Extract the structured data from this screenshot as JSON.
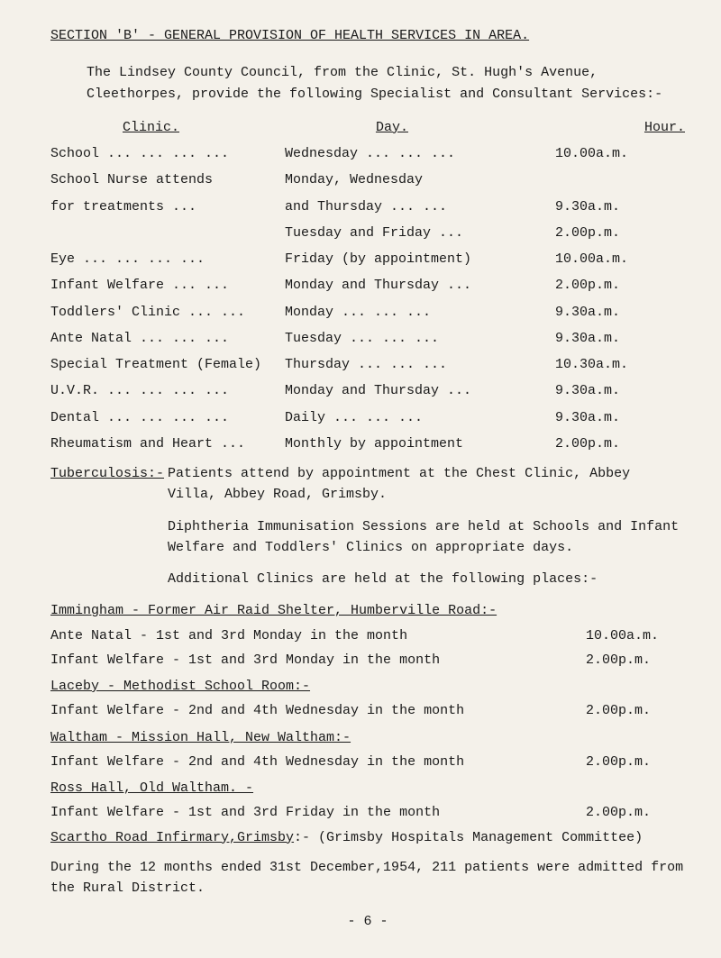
{
  "title": "SECTION 'B' - GENERAL PROVISION OF HEALTH SERVICES IN AREA.",
  "intro": "The Lindsey County Council, from the Clinic, St. Hugh's Avenue, Cleethorpes, provide the following Specialist and Consultant Services:-",
  "headers": {
    "clinic": "Clinic.",
    "day": "Day.",
    "hour": "Hour."
  },
  "schedule": [
    {
      "clinic": "School  ... ... ... ...",
      "day": "Wednesday    ... ... ...",
      "hour": "10.00a.m."
    },
    {
      "clinic": "School Nurse attends",
      "clinic2": "    for treatments    ...",
      "day": "Monday, Wednesday",
      "day2": "and Thursday      ... ...",
      "hour2": "9.30a.m."
    },
    {
      "clinic": "",
      "day": "Tuesday and Friday     ...",
      "hour": "2.00p.m."
    },
    {
      "clinic": "Eye     ... ... ... ...",
      "day": "Friday (by appointment)",
      "hour": "10.00a.m."
    },
    {
      "clinic": "Infant Welfare    ... ...",
      "day": "Monday and Thursday   ...",
      "hour": "2.00p.m."
    },
    {
      "clinic": "Toddlers' Clinic  ... ...",
      "day": "Monday       ... ... ...",
      "hour": "9.30a.m."
    },
    {
      "clinic": "Ante Natal    ... ... ...",
      "day": "Tuesday      ... ... ...",
      "hour": "9.30a.m."
    },
    {
      "clinic": "Special Treatment (Female)",
      "day": "Thursday     ... ... ...",
      "hour": "10.30a.m."
    },
    {
      "clinic": "U.V.R.  ... ... ... ...",
      "day": "Monday and Thursday   ...",
      "hour": "9.30a.m."
    },
    {
      "clinic": "Dental  ... ... ... ...",
      "day": "Daily        ... ... ...",
      "hour": "9.30a.m."
    },
    {
      "clinic": "Rheumatism and Heart   ...",
      "day": "Monthly by appointment",
      "hour": "2.00p.m."
    }
  ],
  "tb": {
    "label": "Tuberculosis:-",
    "p1": "Patients attend by appointment at the Chest Clinic, Abbey Villa, Abbey Road, Grimsby.",
    "p2": "Diphtheria Immunisation Sessions are held at Schools and Infant Welfare and Toddlers' Clinics on appropriate days.",
    "p3": "Additional Clinics are held at the following places:-"
  },
  "places": [
    {
      "heading": "Immingham - Former Air Raid Shelter, Humberville Road:-"
    },
    {
      "left": "Ante Natal      - 1st and 3rd Monday in the month",
      "right": "10.00a.m."
    },
    {
      "left": "Infant Welfare - 1st and 3rd Monday in the month",
      "right": "2.00p.m."
    },
    {
      "heading": "Laceby - Methodist School Room:-"
    },
    {
      "left": "Infant Welfare - 2nd and 4th Wednesday in the month",
      "right": "2.00p.m."
    },
    {
      "heading": "Waltham - Mission Hall, New Waltham:-"
    },
    {
      "left": "Infant Welfare - 2nd and 4th Wednesday in the month",
      "right": "2.00p.m."
    },
    {
      "heading": "Ross Hall, Old Waltham. -"
    },
    {
      "left": "Infant Welfare - 1st and 3rd Friday in the month",
      "right": "2.00p.m."
    }
  ],
  "scartho": {
    "lead_u": "Scartho Road Infirmary,Grimsby",
    "tail": ":- (Grimsby Hospitals Management Committee)"
  },
  "closing": "During the 12 months ended 31st December,1954, 211 patients were admitted from the Rural District.",
  "pagenum": "- 6 -"
}
